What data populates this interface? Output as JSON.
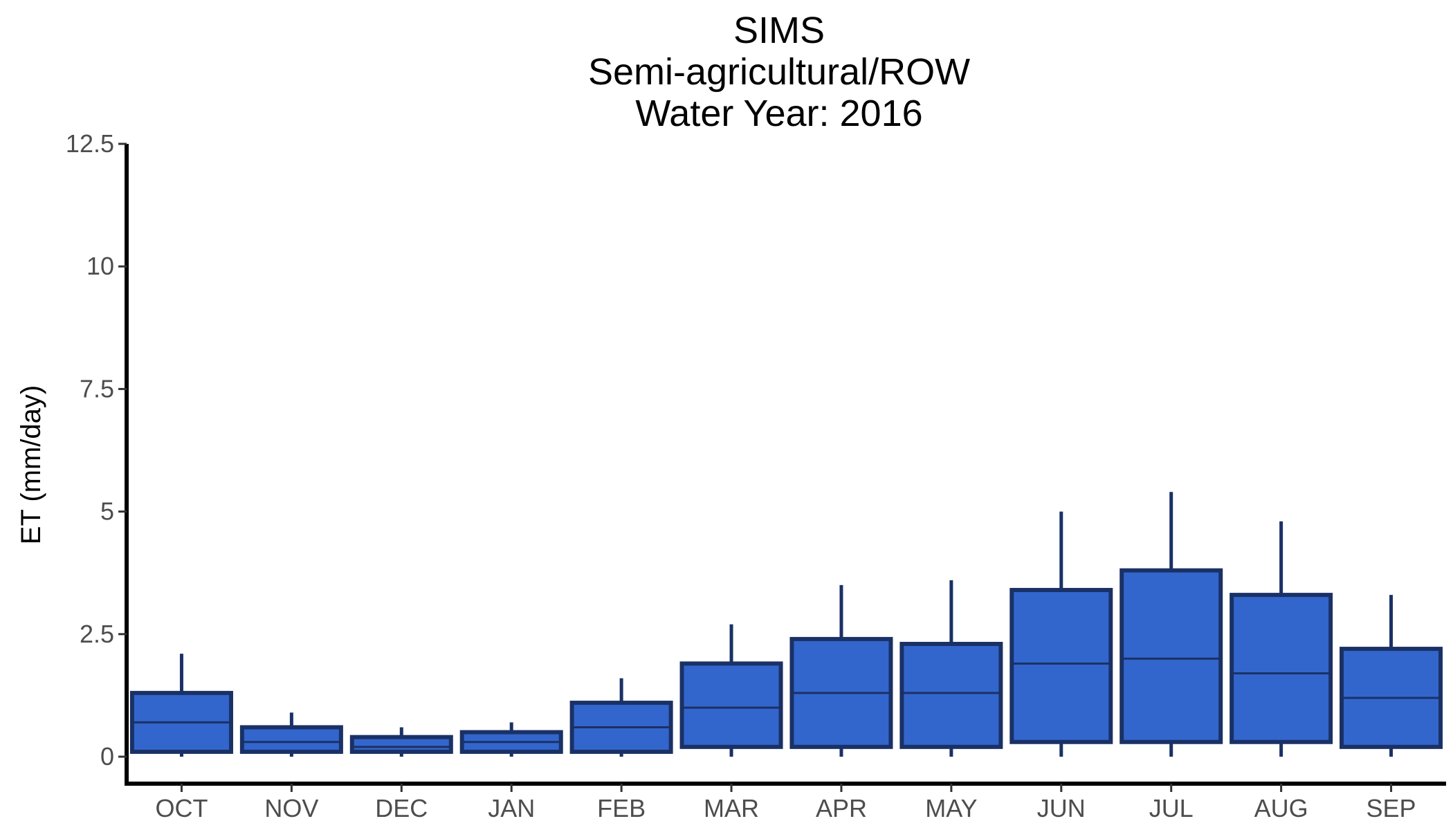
{
  "chart_data": {
    "type": "boxplot",
    "title": [
      "SIMS",
      "Semi-agricultural/ROW",
      "Water Year: 2016"
    ],
    "xlabel": "",
    "ylabel": "ET (mm/day)",
    "ylim": [
      -0.55,
      12.5
    ],
    "yticks": [
      0,
      2.5,
      5,
      7.5,
      10,
      12.5
    ],
    "ytick_labels": [
      "0",
      "2.5",
      "5",
      "7.5",
      "10",
      "12.5"
    ],
    "grid": false,
    "legend": "none",
    "colors": {
      "fill": "#3366cc",
      "outline": "#1a3166",
      "axis": "#000000",
      "tick_text": "#4d4d4d"
    },
    "categories": [
      "OCT",
      "NOV",
      "DEC",
      "JAN",
      "FEB",
      "MAR",
      "APR",
      "MAY",
      "JUN",
      "JUL",
      "AUG",
      "SEP"
    ],
    "boxes": [
      {
        "min": 0.0,
        "q1": 0.1,
        "median": 0.7,
        "q3": 1.3,
        "max": 2.1
      },
      {
        "min": 0.0,
        "q1": 0.1,
        "median": 0.3,
        "q3": 0.6,
        "max": 0.9
      },
      {
        "min": 0.0,
        "q1": 0.1,
        "median": 0.2,
        "q3": 0.4,
        "max": 0.6
      },
      {
        "min": 0.0,
        "q1": 0.1,
        "median": 0.3,
        "q3": 0.5,
        "max": 0.7
      },
      {
        "min": 0.0,
        "q1": 0.1,
        "median": 0.6,
        "q3": 1.1,
        "max": 1.6
      },
      {
        "min": 0.0,
        "q1": 0.2,
        "median": 1.0,
        "q3": 1.9,
        "max": 2.7
      },
      {
        "min": 0.0,
        "q1": 0.2,
        "median": 1.3,
        "q3": 2.4,
        "max": 3.5
      },
      {
        "min": 0.0,
        "q1": 0.2,
        "median": 1.3,
        "q3": 2.3,
        "max": 3.6
      },
      {
        "min": 0.0,
        "q1": 0.3,
        "median": 1.9,
        "q3": 3.4,
        "max": 5.0
      },
      {
        "min": 0.0,
        "q1": 0.3,
        "median": 2.0,
        "q3": 3.8,
        "max": 5.4
      },
      {
        "min": 0.0,
        "q1": 0.3,
        "median": 1.7,
        "q3": 3.3,
        "max": 4.8
      },
      {
        "min": 0.0,
        "q1": 0.2,
        "median": 1.2,
        "q3": 2.2,
        "max": 3.3
      }
    ]
  }
}
